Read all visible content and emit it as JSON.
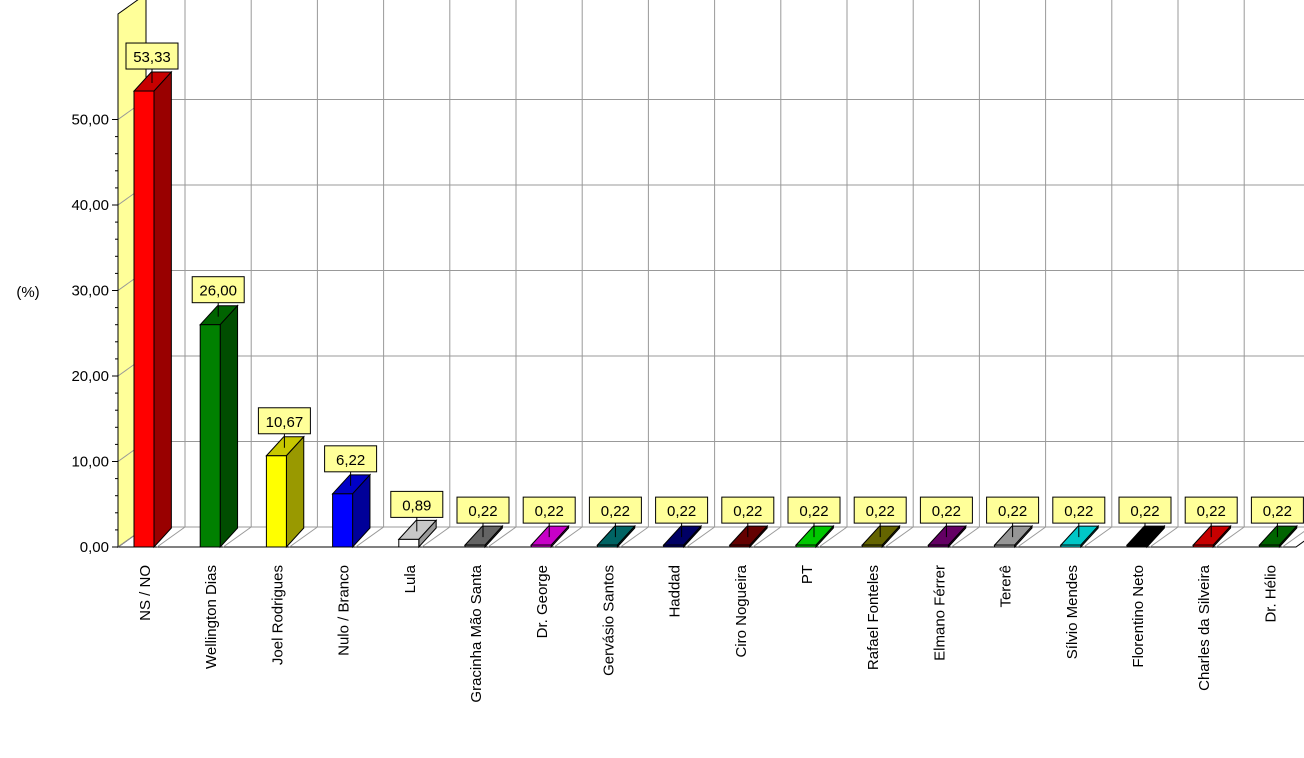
{
  "chart_data": {
    "type": "bar",
    "ylabel": "(%)",
    "ylim": [
      0,
      60
    ],
    "y_ticks": [
      0,
      10,
      20,
      30,
      40,
      50
    ],
    "y_tick_labels": [
      "0,00",
      "10,00",
      "20,00",
      "30,00",
      "40,00",
      "50,00"
    ],
    "grid": true,
    "style": "3d",
    "label_box_color": "#FFFF99",
    "categories": [
      "NS / NO",
      "Wellington Dias",
      "Joel Rodrigues",
      "Nulo / Branco",
      "Lula",
      "Gracinha Mão Santa",
      "Dr. George",
      "Gervásio Santos",
      "Haddad",
      "Ciro Nogueira",
      "PT",
      "Rafael Fonteles",
      "Elmano Férrer",
      "Tererê",
      "Sílvio Mendes",
      "Florentino Neto",
      "Charles da Silveira",
      "Dr. Hélio"
    ],
    "values": [
      53.33,
      26.0,
      10.67,
      6.22,
      0.89,
      0.22,
      0.22,
      0.22,
      0.22,
      0.22,
      0.22,
      0.22,
      0.22,
      0.22,
      0.22,
      0.22,
      0.22,
      0.22
    ],
    "value_labels": [
      "53,33",
      "26,00",
      "10,67",
      "6,22",
      "0,89",
      "0,22",
      "0,22",
      "0,22",
      "0,22",
      "0,22",
      "0,22",
      "0,22",
      "0,22",
      "0,22",
      "0,22",
      "0,22",
      "0,22",
      "0,22"
    ],
    "colors": [
      "#FF0000",
      "#008000",
      "#FFFF00",
      "#0000FF",
      "#FFFFFF",
      "#808080",
      "#FF00FF",
      "#008080",
      "#000080",
      "#800000",
      "#00FF00",
      "#808000",
      "#800080",
      "#C0C0C0",
      "#00FFFF",
      "#000000",
      "#FF0000",
      "#008000"
    ]
  }
}
